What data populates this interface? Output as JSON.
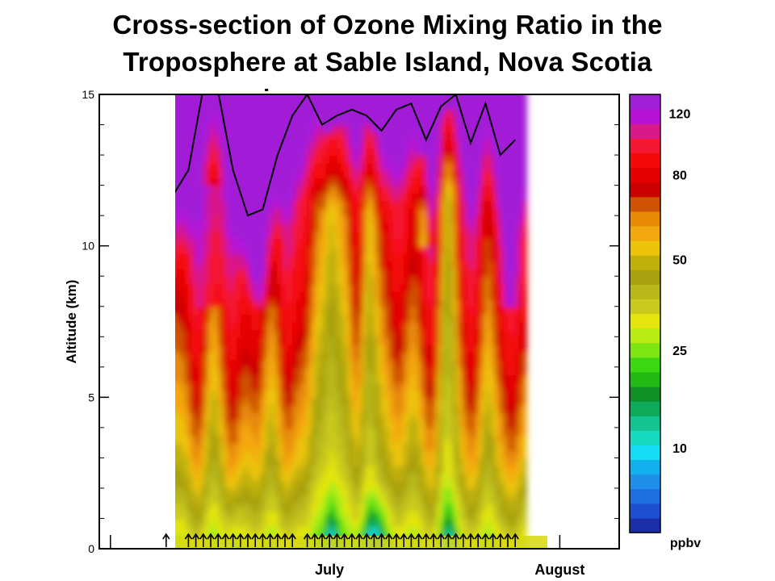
{
  "chart_data": {
    "type": "heatmap",
    "title_lines": [
      "Cross-section of Ozone Mixing Ratio in the",
      "Troposphere at Sable Island, Nova Scotia"
    ],
    "ylabel": "Altitude (km)",
    "xlabel": "",
    "ylim": [
      0,
      15
    ],
    "yticks": [
      0,
      5,
      10,
      15
    ],
    "x_tick_labels": [
      {
        "label": "July",
        "day": 31
      },
      {
        "label": "August",
        "day": 62
      }
    ],
    "colorbar": {
      "unit": "ppbv",
      "tick_labels": [
        {
          "label": "120",
          "value": 120
        },
        {
          "label": "80",
          "value": 80
        },
        {
          "label": "50",
          "value": 50
        },
        {
          "label": "25",
          "value": 25
        },
        {
          "label": "10",
          "value": 10
        }
      ],
      "colors": [
        "#1c2fa8",
        "#1d4fd0",
        "#1d6fe0",
        "#1f8ee8",
        "#14b0ee",
        "#16dbf5",
        "#18dac1",
        "#14c38f",
        "#0fa95b",
        "#109027",
        "#23b914",
        "#3ad712",
        "#7de514",
        "#b8ec12",
        "#e4e50f",
        "#c9c91e",
        "#b8b81a",
        "#a9a10f",
        "#c0b00a",
        "#ebc40b",
        "#f4a80f",
        "#e78a08",
        "#cf5205",
        "#cc0000",
        "#e40000",
        "#f50a0a",
        "#f41733",
        "#d8198a",
        "#b612d5",
        "#a21fd8"
      ]
    },
    "sounding_days": [
      9,
      12,
      13,
      14,
      15,
      16,
      17,
      18,
      19,
      20,
      21,
      22,
      23,
      24,
      25,
      26,
      28,
      29,
      30,
      31,
      32,
      33,
      34,
      35,
      36,
      37,
      38,
      39,
      40,
      41,
      42,
      43,
      44,
      45,
      46,
      47,
      48,
      49,
      50,
      51,
      52,
      53,
      54,
      55,
      56
    ],
    "tropopause": {
      "day": [
        9,
        12,
        14,
        16,
        18,
        20,
        22,
        24,
        26,
        28,
        30,
        32,
        34,
        36,
        38,
        40,
        42,
        44,
        46,
        48,
        50,
        52,
        54,
        56
      ],
      "altitude_km": [
        11.3,
        12.5,
        15.2,
        15.1,
        12.5,
        11.0,
        11.2,
        13.0,
        14.3,
        15.0,
        14.0,
        14.3,
        14.5,
        14.3,
        13.8,
        14.5,
        14.7,
        13.5,
        14.6,
        15.0,
        13.4,
        14.7,
        13.0,
        13.5
      ]
    }
  }
}
